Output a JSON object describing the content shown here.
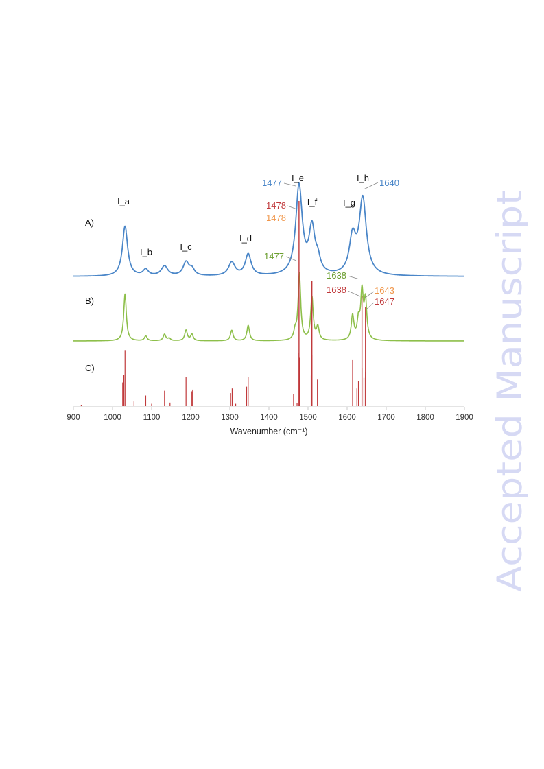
{
  "watermark": {
    "text": "Accepted Manuscript",
    "color": "#d6d9f4"
  },
  "chart_data": {
    "type": "line",
    "xlabel": "Wavenumber (cm⁻¹)",
    "xlim": [
      900,
      1900
    ],
    "x_ticks": [
      "900",
      "1000",
      "1100",
      "1200",
      "1300",
      "1400",
      "1500",
      "1600",
      "1700",
      "1800",
      "1900"
    ],
    "panels": [
      {
        "label": "A)",
        "color": "#4a86c8",
        "kind": "spectrum",
        "peaks": [
          {
            "x": 1032,
            "h": 0.56,
            "w": 8
          },
          {
            "x": 1085,
            "h": 0.07,
            "w": 8
          },
          {
            "x": 1133,
            "h": 0.11,
            "w": 10
          },
          {
            "x": 1188,
            "h": 0.15,
            "w": 9
          },
          {
            "x": 1203,
            "h": 0.07,
            "w": 8
          },
          {
            "x": 1305,
            "h": 0.15,
            "w": 10
          },
          {
            "x": 1347,
            "h": 0.24,
            "w": 9
          },
          {
            "x": 1477,
            "h": 1.0,
            "w": 10
          },
          {
            "x": 1510,
            "h": 0.5,
            "w": 9
          },
          {
            "x": 1525,
            "h": 0.14,
            "w": 8
          },
          {
            "x": 1614,
            "h": 0.4,
            "w": 10
          },
          {
            "x": 1640,
            "h": 0.85,
            "w": 11
          }
        ]
      },
      {
        "label": "B)",
        "color": "#8dbf4a",
        "kind": "spectrum",
        "peaks": [
          {
            "x": 1032,
            "h": 0.58,
            "w": 4
          },
          {
            "x": 1085,
            "h": 0.06,
            "w": 4
          },
          {
            "x": 1133,
            "h": 0.08,
            "w": 4
          },
          {
            "x": 1145,
            "h": 0.03,
            "w": 4
          },
          {
            "x": 1188,
            "h": 0.13,
            "w": 4
          },
          {
            "x": 1203,
            "h": 0.08,
            "w": 4
          },
          {
            "x": 1305,
            "h": 0.13,
            "w": 4
          },
          {
            "x": 1347,
            "h": 0.19,
            "w": 4
          },
          {
            "x": 1467,
            "h": 0.1,
            "w": 4
          },
          {
            "x": 1478,
            "h": 0.82,
            "w": 4
          },
          {
            "x": 1510,
            "h": 0.53,
            "w": 4
          },
          {
            "x": 1525,
            "h": 0.16,
            "w": 4
          },
          {
            "x": 1614,
            "h": 0.3,
            "w": 4
          },
          {
            "x": 1629,
            "h": 0.22,
            "w": 4
          },
          {
            "x": 1638,
            "h": 0.57,
            "w": 4
          },
          {
            "x": 1647,
            "h": 0.47,
            "w": 4
          }
        ]
      },
      {
        "label": "C)",
        "color": "#c0393b",
        "kind": "sticks",
        "sticks": [
          {
            "x": 920,
            "h": 0.02
          },
          {
            "x": 1026,
            "h": 0.4
          },
          {
            "x": 1029,
            "h": 0.53
          },
          {
            "x": 1032,
            "h": 0.95
          },
          {
            "x": 1055,
            "h": 0.08
          },
          {
            "x": 1085,
            "h": 0.18
          },
          {
            "x": 1100,
            "h": 0.04
          },
          {
            "x": 1133,
            "h": 0.26
          },
          {
            "x": 1147,
            "h": 0.06
          },
          {
            "x": 1188,
            "h": 0.5
          },
          {
            "x": 1203,
            "h": 0.25
          },
          {
            "x": 1205,
            "h": 0.28
          },
          {
            "x": 1302,
            "h": 0.22
          },
          {
            "x": 1306,
            "h": 0.3
          },
          {
            "x": 1315,
            "h": 0.04
          },
          {
            "x": 1343,
            "h": 0.33
          },
          {
            "x": 1347,
            "h": 0.5
          },
          {
            "x": 1463,
            "h": 0.2
          },
          {
            "x": 1472,
            "h": 0.05
          },
          {
            "x": 1477,
            "h": 0.9
          },
          {
            "x": 1478,
            "h": 0.82
          },
          {
            "x": 1508,
            "h": 0.52
          },
          {
            "x": 1510,
            "h": 0.87
          },
          {
            "x": 1524,
            "h": 0.45
          },
          {
            "x": 1614,
            "h": 0.78
          },
          {
            "x": 1625,
            "h": 0.3
          },
          {
            "x": 1629,
            "h": 0.42
          },
          {
            "x": 1638,
            "h": 0.65
          },
          {
            "x": 1643,
            "h": 0.48
          },
          {
            "x": 1647,
            "h": 0.58
          }
        ]
      }
    ],
    "band_labels": [
      {
        "text": "I_a",
        "x": 1032
      },
      {
        "text": "I_b",
        "x": 1085
      },
      {
        "text": "I_c",
        "x": 1188
      },
      {
        "text": "I_d",
        "x": 1347
      },
      {
        "text": "I_e",
        "x": 1477
      },
      {
        "text": "I_f",
        "x": 1510
      },
      {
        "text": "I_g",
        "x": 1614
      },
      {
        "text": "I_h",
        "x": 1640
      }
    ],
    "annotations": [
      {
        "text": "1477",
        "color": "#4a86c8"
      },
      {
        "text": "1640",
        "color": "#4a86c8"
      },
      {
        "text": "1478",
        "color": "#c0393b"
      },
      {
        "text": "1478",
        "color": "#f0964a"
      },
      {
        "text": "1477",
        "color": "#6a9e2e"
      },
      {
        "text": "1638",
        "color": "#6a9e2e"
      },
      {
        "text": "1638",
        "color": "#c0393b"
      },
      {
        "text": "1643",
        "color": "#f0964a"
      },
      {
        "text": "1647",
        "color": "#c0393b"
      }
    ]
  }
}
